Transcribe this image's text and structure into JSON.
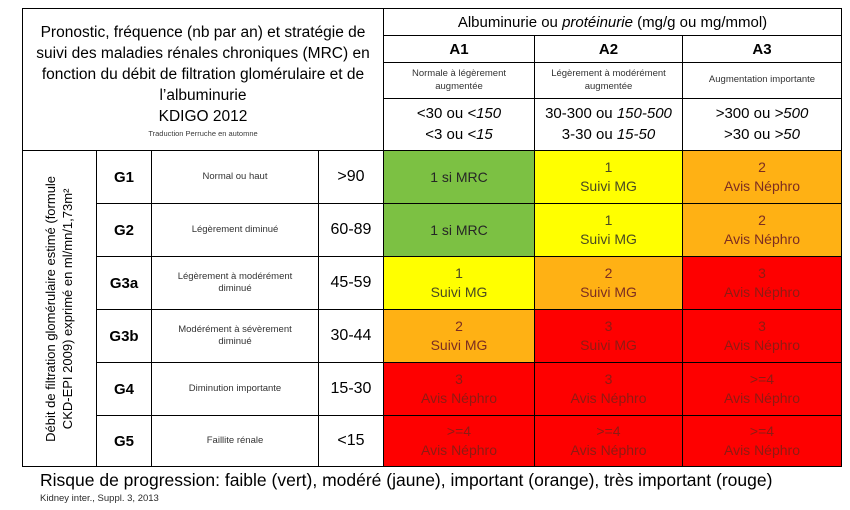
{
  "title_box": {
    "main": "Pronostic, fréquence (nb par an) et stratégie de suivi des maladies rénales chroniques (MRC) en fonction du débit de filtration glomérulaire et de l’albuminurie",
    "standard": "KDIGO 2012",
    "credit": "Traduction Perruche en automne"
  },
  "albuminuria": {
    "header_pre": "Albuminurie ou ",
    "header_italic": "protéinurie",
    "header_post": " (mg/g ou mg/mmol)",
    "columns": [
      {
        "code": "A1",
        "desc": "Normale à légèrement augmentée",
        "r1_pre": "<30 ou ",
        "r1_it": "<150",
        "r2_pre": "<3 ou ",
        "r2_it": "<15"
      },
      {
        "code": "A2",
        "desc": "Légèrement à modérément augmentée",
        "r1_pre": "30-300 ou ",
        "r1_it": "150-500",
        "r2_pre": "3-30 ou ",
        "r2_it": "15-50"
      },
      {
        "code": "A3",
        "desc": "Augmentation importante",
        "r1_pre": ">300 ou ",
        "r1_it": ">500",
        "r2_pre": ">30 ou ",
        "r2_it": ">50"
      }
    ]
  },
  "gfr_axis_label": "Débit de filtration glomérulaire estimé (formule CKD-EPI 2009) exprimé en ml/mn/1,73m²",
  "rows": [
    {
      "code": "G1",
      "desc": "Normal ou haut",
      "range": ">90",
      "cells": [
        {
          "l1": "1 si MRC",
          "l2": "",
          "color": "green"
        },
        {
          "l1": "1",
          "l2": "Suivi MG",
          "color": "yellow"
        },
        {
          "l1": "2",
          "l2": "Avis Néphro",
          "color": "orange"
        }
      ]
    },
    {
      "code": "G2",
      "desc": "Légèrement diminué",
      "range": "60-89",
      "cells": [
        {
          "l1": "1 si MRC",
          "l2": "",
          "color": "green"
        },
        {
          "l1": "1",
          "l2": "Suivi MG",
          "color": "yellow"
        },
        {
          "l1": "2",
          "l2": "Avis Néphro",
          "color": "orange"
        }
      ]
    },
    {
      "code": "G3a",
      "desc": "Légèrement à modérément diminué",
      "range": "45-59",
      "cells": [
        {
          "l1": "1",
          "l2": "Suivi MG",
          "color": "yellow"
        },
        {
          "l1": "2",
          "l2": "Suivi MG",
          "color": "orange"
        },
        {
          "l1": "3",
          "l2": "Avis Néphro",
          "color": "red"
        }
      ]
    },
    {
      "code": "G3b",
      "desc": "Modérément à sévèrement diminué",
      "range": "30-44",
      "cells": [
        {
          "l1": "2",
          "l2": "Suivi MG",
          "color": "orange"
        },
        {
          "l1": "3",
          "l2": "Suivi MG",
          "color": "red"
        },
        {
          "l1": "3",
          "l2": "Avis Néphro",
          "color": "red"
        }
      ]
    },
    {
      "code": "G4",
      "desc": "Diminution importante",
      "range": "15-30",
      "cells": [
        {
          "l1": "3",
          "l2": "Avis Néphro",
          "color": "red"
        },
        {
          "l1": "3",
          "l2": "Avis Néphro",
          "color": "red"
        },
        {
          "l1": ">=4",
          "l2": "Avis Néphro",
          "color": "red"
        }
      ]
    },
    {
      "code": "G5",
      "desc": "Faillite rénale",
      "range": "<15",
      "cells": [
        {
          "l1": ">=4",
          "l2": "Avis Néphro",
          "color": "red"
        },
        {
          "l1": ">=4",
          "l2": "Avis Néphro",
          "color": "red"
        },
        {
          "l1": ">=4",
          "l2": "Avis Néphro",
          "color": "red"
        }
      ]
    }
  ],
  "legend": "Risque de progression: faible (vert), modéré (jaune), important (orange), très important (rouge)",
  "source": "Kidney inter., Suppl. 3, 2013",
  "colors": {
    "green": {
      "bg": "#7CC143",
      "fg": "#262626"
    },
    "yellow": {
      "bg": "#FFFF00",
      "fg": "#4A4A21"
    },
    "orange": {
      "bg": "#FFB114",
      "fg": "#7C2D21"
    },
    "red": {
      "bg": "#FE0000",
      "fg": "#8E1B13"
    }
  },
  "chart_data": {
    "type": "heatmap",
    "title": "Pronostic, fréquence (nb par an) et stratégie de suivi des MRC en fonction du DFG et de l’albuminurie — KDIGO 2012",
    "xlabel": "Albuminurie ou protéinurie (mg/g ou mg/mmol)",
    "ylabel": "Débit de filtration glomérulaire estimé (formule CKD-EPI 2009) exprimé en ml/mn/1,73m²",
    "x_categories": [
      "A1 (<30 ou <150 ; <3 ou <15)",
      "A2 (30-300 ou 150-500 ; 3-30 ou 15-50)",
      "A3 (>300 ou >500 ; >30 ou >50)"
    ],
    "y_categories": [
      "G1 Normal ou haut >90",
      "G2 Légèrement diminué 60-89",
      "G3a Légèrement à modérément diminué 45-59",
      "G3b Modérément à sévèrement diminué 30-44",
      "G4 Diminution importante 15-30",
      "G5 Faillite rénale <15"
    ],
    "values": [
      [
        "1 si MRC",
        "1 Suivi MG",
        "2 Avis Néphro"
      ],
      [
        "1 si MRC",
        "1 Suivi MG",
        "2 Avis Néphro"
      ],
      [
        "1 Suivi MG",
        "2 Suivi MG",
        "3 Avis Néphro"
      ],
      [
        "2 Suivi MG",
        "3 Suivi MG",
        "3 Avis Néphro"
      ],
      [
        "3 Avis Néphro",
        "3 Avis Néphro",
        ">=4 Avis Néphro"
      ],
      [
        ">=4 Avis Néphro",
        ">=4 Avis Néphro",
        ">=4 Avis Néphro"
      ]
    ],
    "color_matrix": [
      [
        "green",
        "yellow",
        "orange"
      ],
      [
        "green",
        "yellow",
        "orange"
      ],
      [
        "yellow",
        "orange",
        "red"
      ],
      [
        "orange",
        "red",
        "red"
      ],
      [
        "red",
        "red",
        "red"
      ],
      [
        "red",
        "red",
        "red"
      ]
    ],
    "legend_position": "bottom",
    "legend": "vert=faible, jaune=modéré, orange=important, rouge=très important"
  }
}
